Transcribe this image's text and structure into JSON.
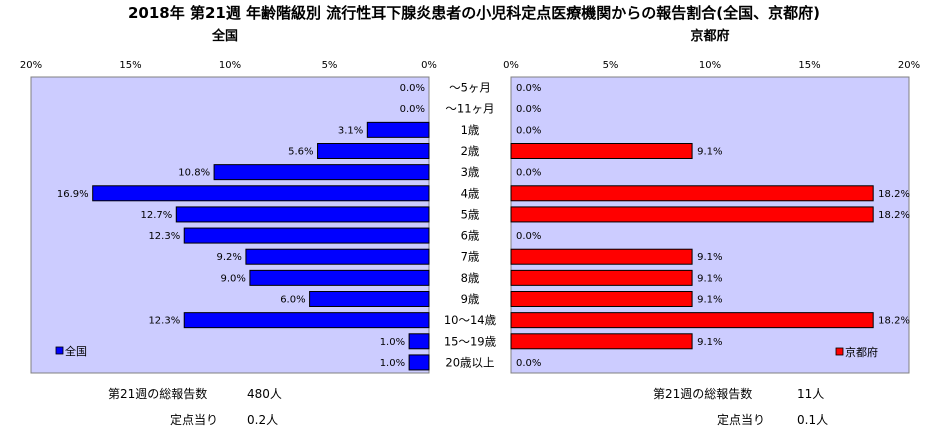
{
  "title": "2018年 第21週 年齢階級別 流行性耳下腺炎患者の小児科定点医療機関からの報告割合(全国、京都府)",
  "chart_data": {
    "type": "bar",
    "orientation": "horizontal-butterfly",
    "categories": [
      "～5ヶ月",
      "～11ヶ月",
      "1歳",
      "2歳",
      "3歳",
      "4歳",
      "5歳",
      "6歳",
      "7歳",
      "8歳",
      "9歳",
      "10～14歳",
      "15～19歳",
      "20歳以上"
    ],
    "xlim": [
      0,
      20
    ],
    "xticks": [
      "20%",
      "15%",
      "10%",
      "5%",
      "0%"
    ],
    "xticks_right": [
      "0%",
      "5%",
      "10%",
      "15%",
      "20%"
    ],
    "grid": false,
    "series": [
      {
        "name": "全国",
        "side": "left",
        "color": "#0000ff",
        "panel_title": "全国",
        "values": [
          0.0,
          0.0,
          3.1,
          5.6,
          10.8,
          16.9,
          12.7,
          12.3,
          9.2,
          9.0,
          6.0,
          12.3,
          1.0,
          1.0
        ],
        "labels": [
          "0.0%",
          "0.0%",
          "3.1%",
          "5.6%",
          "10.8%",
          "16.9%",
          "12.7%",
          "12.3%",
          "9.2%",
          "9.0%",
          "6.0%",
          "12.3%",
          "1.0%",
          "1.0%"
        ],
        "legend_position": "bottom-left"
      },
      {
        "name": "京都府",
        "side": "right",
        "color": "#ff0000",
        "panel_title": "京都府",
        "values": [
          0.0,
          0.0,
          0.0,
          9.1,
          0.0,
          18.2,
          18.2,
          0.0,
          9.1,
          9.1,
          9.1,
          18.2,
          9.1,
          0.0
        ],
        "labels": [
          "0.0%",
          "0.0%",
          "0.0%",
          "9.1%",
          "0.0%",
          "18.2%",
          "18.2%",
          "0.0%",
          "9.1%",
          "9.1%",
          "9.1%",
          "18.2%",
          "9.1%",
          "0.0%"
        ],
        "legend_position": "bottom-right"
      }
    ]
  },
  "footer": {
    "left": {
      "total_label": "第21週の総報告数",
      "total_value": "480人",
      "per_label": "定点当り",
      "per_value": "0.2人"
    },
    "right": {
      "total_label": "第21週の総報告数",
      "total_value": "11人",
      "per_label": "定点当り",
      "per_value": "0.1人"
    }
  },
  "colors": {
    "plot_background": "#ccccff",
    "left_bar": "#0000ff",
    "right_bar": "#ff0000"
  }
}
